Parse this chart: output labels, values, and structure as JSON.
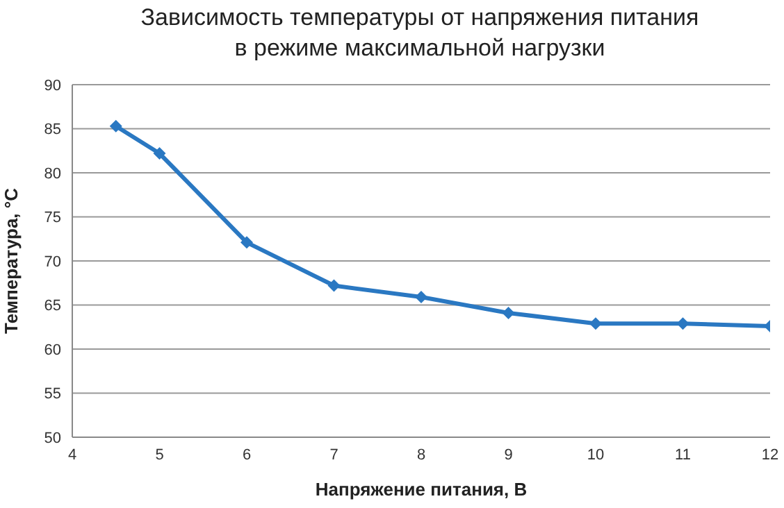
{
  "chart_data": {
    "type": "line",
    "title": "Зависимость температуры от напряжения питания\nв режиме максимальной нагрузки",
    "xlabel": "Напряжение питания, В",
    "ylabel": "Температура, °C",
    "x": [
      4.5,
      5,
      6,
      7,
      8,
      9,
      10,
      11,
      12
    ],
    "series": [
      {
        "color": "#2a78c2",
        "values": [
          85.3,
          82.2,
          72.1,
          67.2,
          65.9,
          64.1,
          62.9,
          62.9,
          62.6
        ]
      }
    ],
    "xlim": [
      4,
      12
    ],
    "xticks": [
      4,
      5,
      6,
      7,
      8,
      9,
      10,
      11,
      12
    ],
    "ylim": [
      50,
      90
    ],
    "yticks": [
      50,
      55,
      60,
      65,
      70,
      75,
      80,
      85,
      90
    ],
    "grid": "y",
    "marker": "diamond",
    "line_style": "solid"
  }
}
